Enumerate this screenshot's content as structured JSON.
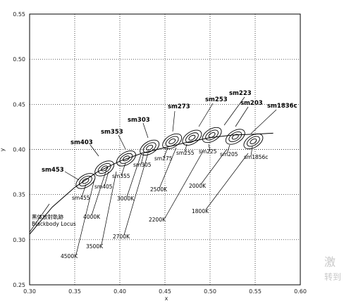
{
  "chart_data": {
    "type": "scatter",
    "title": "",
    "xlabel": "x",
    "ylabel": "y",
    "xlim": [
      0.3,
      0.6
    ],
    "ylim": [
      0.25,
      0.55
    ],
    "x_ticks": [
      "0.30",
      "0.35",
      "0.40",
      "0.45",
      "0.50",
      "0.55",
      "0.60"
    ],
    "y_ticks": [
      "0.25",
      "0.30",
      "0.35",
      "0.40",
      "0.45",
      "0.50",
      "0.55"
    ],
    "grid": true,
    "blackbody_locus": {
      "label_cn": "黑体放射軌跡",
      "label_en": "Blackbody Locus",
      "points": [
        [
          0.3,
          0.306
        ],
        [
          0.325,
          0.336
        ],
        [
          0.35,
          0.358
        ],
        [
          0.375,
          0.375
        ],
        [
          0.4,
          0.387
        ],
        [
          0.425,
          0.396
        ],
        [
          0.45,
          0.402
        ],
        [
          0.475,
          0.408
        ],
        [
          0.5,
          0.413
        ],
        [
          0.525,
          0.416
        ],
        [
          0.55,
          0.417
        ],
        [
          0.57,
          0.418
        ]
      ]
    },
    "ellipses": [
      {
        "name": "sm453",
        "x": 0.362,
        "y": 0.365
      },
      {
        "name": "sm405",
        "x": 0.383,
        "y": 0.379
      },
      {
        "name": "sm355",
        "x": 0.407,
        "y": 0.39
      },
      {
        "name": "sm305",
        "x": 0.433,
        "y": 0.402
      },
      {
        "name": "sm275",
        "x": 0.458,
        "y": 0.409
      },
      {
        "name": "sm255",
        "x": 0.48,
        "y": 0.413
      },
      {
        "name": "sm225",
        "x": 0.502,
        "y": 0.416
      },
      {
        "name": "sm205",
        "x": 0.528,
        "y": 0.414
      },
      {
        "name": "sm1856c",
        "x": 0.548,
        "y": 0.409
      }
    ],
    "outer_series": [
      "sm453",
      "sm403",
      "sm353",
      "sm303",
      "sm273",
      "sm253",
      "sm223",
      "sm203",
      "sm1836c"
    ],
    "inner_series": [
      "sm455",
      "sm405",
      "sm355",
      "sm305",
      "sm275",
      "sm255",
      "sm225",
      "sm205",
      "sm1856c"
    ],
    "cct_labels": [
      "4500K",
      "4000K",
      "3500K",
      "3000K",
      "2700K",
      "2500K",
      "2200K",
      "2000K",
      "1800K"
    ],
    "watermark": [
      "激",
      "转到"
    ]
  }
}
